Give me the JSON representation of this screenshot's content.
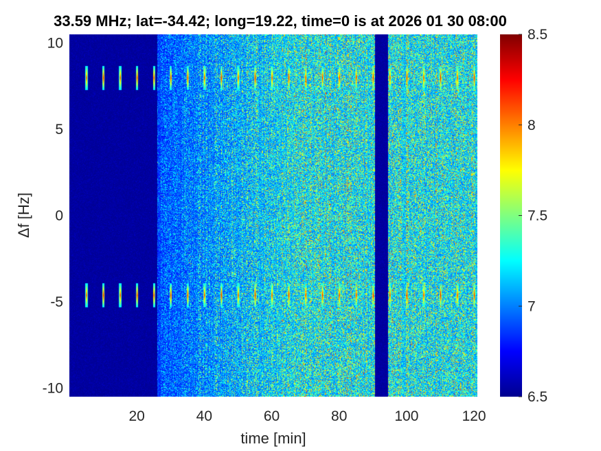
{
  "chart_data": {
    "type": "heatmap",
    "title": "33.59 MHz;  lat=-34.42; long=19.22, time=0 is at 2026 01 30 08:00",
    "xlabel": "time [min]",
    "ylabel": "Δf [Hz]",
    "xlim": [
      0,
      121
    ],
    "ylim": [
      -10.5,
      10.5
    ],
    "x_ticks": [
      20,
      40,
      60,
      80,
      100,
      120
    ],
    "y_ticks": [
      -10,
      -5,
      0,
      5,
      10
    ],
    "colorbar": {
      "range": [
        6.5,
        8.5
      ],
      "ticks": [
        6.5,
        7,
        7.5,
        8,
        8.5
      ],
      "colormap": "jet"
    },
    "quiet_time_spans_min": [
      [
        0,
        26
      ],
      [
        90.5,
        94.5
      ]
    ],
    "pulse_band_centers_hz": [
      8.0,
      -4.6
    ],
    "pulse_times_min": [
      5,
      10,
      15,
      20,
      25,
      30,
      35,
      40,
      45,
      50,
      55,
      60,
      65,
      70,
      75,
      80,
      85,
      90,
      95,
      100,
      105,
      110,
      115,
      120
    ]
  }
}
